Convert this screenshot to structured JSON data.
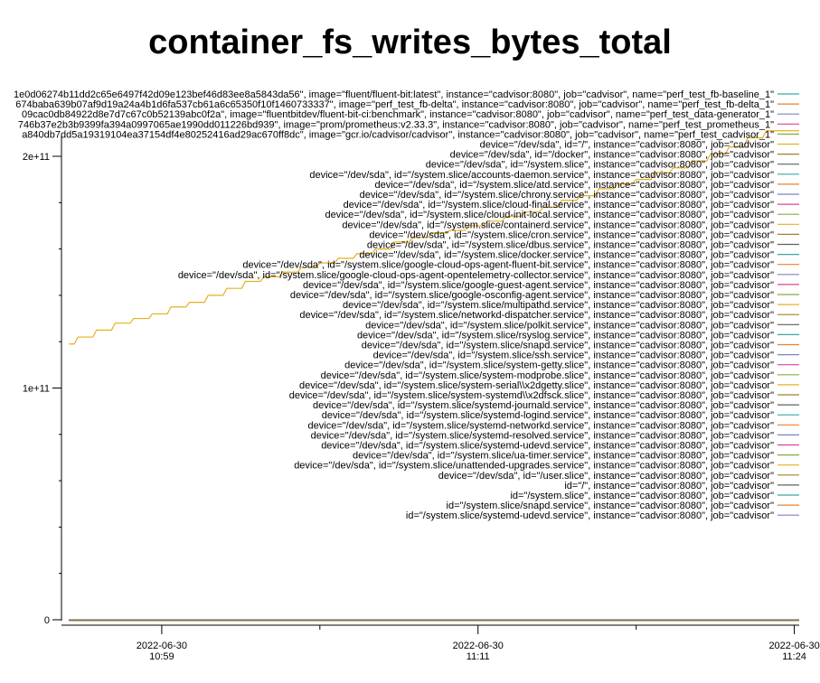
{
  "chart_data": {
    "type": "line",
    "title": "container_fs_writes_bytes_total",
    "xlabel": "",
    "ylabel": "",
    "ylim": [
      0,
      230000000000
    ],
    "y_ticks": [
      {
        "value": 0,
        "label": "0"
      },
      {
        "value": 100000000000,
        "label": "1e+11"
      },
      {
        "value": 200000000000,
        "label": "2e+11"
      }
    ],
    "x_range": [
      0,
      38
    ],
    "x_ticks": [
      {
        "value": 5,
        "label": [
          "2022-06-30",
          "10:59"
        ]
      },
      {
        "value": 22,
        "label": [
          "2022-06-30",
          "11:11"
        ]
      },
      {
        "value": 39,
        "label": [
          "2022-06-30",
          "11:24"
        ]
      }
    ],
    "x_minor_ticks": [
      13.5,
      30.5
    ],
    "grid": false,
    "legend_position": "top-right",
    "legend": [
      {
        "label": "1e0d06274b11dd2c65e6497f42d09e123bef46d83ee8a5843da56\", image=\"fluent/fluent-bit:latest\", instance=\"cadvisor:8080\", job=\"cadvisor\", name=\"perf_test_fb-baseline_1\"",
        "color": "#3aa6a6"
      },
      {
        "label": "674baba639b07af9d19a24a4b1d6fa537cb61a6c65350f10f1460733337\", image=\"perf_test_fb-delta\", instance=\"cadvisor:8080\", job=\"cadvisor\", name=\"perf_test_fb-delta_1\"",
        "color": "#ec7f2c"
      },
      {
        "label": "09cac0db84922d8e7d7c67c0b52139abc0f2a\", image=\"fluentbitdev/fluent-bit-ci:benchmark\", instance=\"cadvisor:8080\", job=\"cadvisor\", name=\"perf_test_data-generator_1\"",
        "color": "#8080c8"
      },
      {
        "label": "746b37e2b3b9399fa394a0997065ae1990dd011226bd939\", image=\"prom/prometheus:v2.33.3\", instance=\"cadvisor:8080\", job=\"cadvisor\", name=\"perf_test_prometheus_1\"",
        "color": "#e0409a"
      },
      {
        "label": "a840db7dd5a19319104ea37154df4e80252416ad29ac670ff8dc\", image=\"gcr.io/cadvisor/cadvisor\", instance=\"cadvisor:8080\", job=\"cadvisor\", name=\"perf_test_cadvisor_1\"",
        "color": "#80b040"
      },
      {
        "label": "device=\"/dev/sda\", id=\"/\", instance=\"cadvisor:8080\", job=\"cadvisor\"",
        "color": "#e8b020"
      },
      {
        "label": "device=\"/dev/sda\", id=\"/docker\", instance=\"cadvisor:8080\", job=\"cadvisor\"",
        "color": "#a08030"
      },
      {
        "label": "device=\"/dev/sda\", id=\"/system.slice\", instance=\"cadvisor:8080\", job=\"cadvisor\"",
        "color": "#606060"
      },
      {
        "label": "device=\"/dev/sda\", id=\"/system.slice/accounts-daemon.service\", instance=\"cadvisor:8080\", job=\"cadvisor\"",
        "color": "#3aa6a6"
      },
      {
        "label": "device=\"/dev/sda\", id=\"/system.slice/atd.service\", instance=\"cadvisor:8080\", job=\"cadvisor\"",
        "color": "#ec7f2c"
      },
      {
        "label": "device=\"/dev/sda\", id=\"/system.slice/chrony.service\", instance=\"cadvisor:8080\", job=\"cadvisor\"",
        "color": "#8080c8"
      },
      {
        "label": "device=\"/dev/sda\", id=\"/system.slice/cloud-final.service\", instance=\"cadvisor:8080\", job=\"cadvisor\"",
        "color": "#e0409a"
      },
      {
        "label": "device=\"/dev/sda\", id=\"/system.slice/cloud-init-local.service\", instance=\"cadvisor:8080\", job=\"cadvisor\"",
        "color": "#80b040"
      },
      {
        "label": "device=\"/dev/sda\", id=\"/system.slice/containerd.service\", instance=\"cadvisor:8080\", job=\"cadvisor\"",
        "color": "#e8b020"
      },
      {
        "label": "device=\"/dev/sda\", id=\"/system.slice/cron.service\", instance=\"cadvisor:8080\", job=\"cadvisor\"",
        "color": "#a08030"
      },
      {
        "label": "device=\"/dev/sda\", id=\"/system.slice/dbus.service\", instance=\"cadvisor:8080\", job=\"cadvisor\"",
        "color": "#606060"
      },
      {
        "label": "device=\"/dev/sda\", id=\"/system.slice/docker.service\", instance=\"cadvisor:8080\", job=\"cadvisor\"",
        "color": "#3aa6a6"
      },
      {
        "label": "device=\"/dev/sda\", id=\"/system.slice/google-cloud-ops-agent-fluent-bit.service\", instance=\"cadvisor:8080\", job=\"cadvisor\"",
        "color": "#ec7f2c"
      },
      {
        "label": "device=\"/dev/sda\", id=\"/system.slice/google-cloud-ops-agent-opentelemetry-collector.service\", instance=\"cadvisor:8080\", job=\"cadvisor\"",
        "color": "#8080c8"
      },
      {
        "label": "device=\"/dev/sda\", id=\"/system.slice/google-guest-agent.service\", instance=\"cadvisor:8080\", job=\"cadvisor\"",
        "color": "#e0409a"
      },
      {
        "label": "device=\"/dev/sda\", id=\"/system.slice/google-osconfig-agent.service\", instance=\"cadvisor:8080\", job=\"cadvisor\"",
        "color": "#80b040"
      },
      {
        "label": "device=\"/dev/sda\", id=\"/system.slice/multipathd.service\", instance=\"cadvisor:8080\", job=\"cadvisor\"",
        "color": "#e8b020"
      },
      {
        "label": "device=\"/dev/sda\", id=\"/system.slice/networkd-dispatcher.service\", instance=\"cadvisor:8080\", job=\"cadvisor\"",
        "color": "#a08030"
      },
      {
        "label": "device=\"/dev/sda\", id=\"/system.slice/polkit.service\", instance=\"cadvisor:8080\", job=\"cadvisor\"",
        "color": "#606060"
      },
      {
        "label": "device=\"/dev/sda\", id=\"/system.slice/rsyslog.service\", instance=\"cadvisor:8080\", job=\"cadvisor\"",
        "color": "#3aa6a6"
      },
      {
        "label": "device=\"/dev/sda\", id=\"/system.slice/snapd.service\", instance=\"cadvisor:8080\", job=\"cadvisor\"",
        "color": "#ec7f2c"
      },
      {
        "label": "device=\"/dev/sda\", id=\"/system.slice/ssh.service\", instance=\"cadvisor:8080\", job=\"cadvisor\"",
        "color": "#8080c8"
      },
      {
        "label": "device=\"/dev/sda\", id=\"/system.slice/system-getty.slice\", instance=\"cadvisor:8080\", job=\"cadvisor\"",
        "color": "#e0409a"
      },
      {
        "label": "device=\"/dev/sda\", id=\"/system.slice/system-modprobe.slice\", instance=\"cadvisor:8080\", job=\"cadvisor\"",
        "color": "#80b040"
      },
      {
        "label": "device=\"/dev/sda\", id=\"/system.slice/system-serial\\\\x2dgetty.slice\", instance=\"cadvisor:8080\", job=\"cadvisor\"",
        "color": "#e8b020"
      },
      {
        "label": "device=\"/dev/sda\", id=\"/system.slice/system-systemd\\\\x2dfsck.slice\", instance=\"cadvisor:8080\", job=\"cadvisor\"",
        "color": "#a08030"
      },
      {
        "label": "device=\"/dev/sda\", id=\"/system.slice/systemd-journald.service\", instance=\"cadvisor:8080\", job=\"cadvisor\"",
        "color": "#606060"
      },
      {
        "label": "device=\"/dev/sda\", id=\"/system.slice/systemd-logind.service\", instance=\"cadvisor:8080\", job=\"cadvisor\"",
        "color": "#3aa6a6"
      },
      {
        "label": "device=\"/dev/sda\", id=\"/system.slice/systemd-networkd.service\", instance=\"cadvisor:8080\", job=\"cadvisor\"",
        "color": "#ec7f2c"
      },
      {
        "label": "device=\"/dev/sda\", id=\"/system.slice/systemd-resolved.service\", instance=\"cadvisor:8080\", job=\"cadvisor\"",
        "color": "#8080c8"
      },
      {
        "label": "device=\"/dev/sda\", id=\"/system.slice/systemd-udevd.service\", instance=\"cadvisor:8080\", job=\"cadvisor\"",
        "color": "#e0409a"
      },
      {
        "label": "device=\"/dev/sda\", id=\"/system.slice/ua-timer.service\", instance=\"cadvisor:8080\", job=\"cadvisor\"",
        "color": "#80b040"
      },
      {
        "label": "device=\"/dev/sda\", id=\"/system.slice/unattended-upgrades.service\", instance=\"cadvisor:8080\", job=\"cadvisor\"",
        "color": "#e8b020"
      },
      {
        "label": "device=\"/dev/sda\", id=\"/user.slice\", instance=\"cadvisor:8080\", job=\"cadvisor\"",
        "color": "#a08030"
      },
      {
        "label": "id=\"/\", instance=\"cadvisor:8080\", job=\"cadvisor\"",
        "color": "#606060"
      },
      {
        "label": "id=\"/system.slice\", instance=\"cadvisor:8080\", job=\"cadvisor\"",
        "color": "#3aa6a6"
      },
      {
        "label": "id=\"/system.slice/snapd.service\", instance=\"cadvisor:8080\", job=\"cadvisor\"",
        "color": "#ec7f2c"
      },
      {
        "label": "id=\"/system.slice/systemd-udevd.service\", instance=\"cadvisor:8080\", job=\"cadvisor\"",
        "color": "#8080c8"
      }
    ],
    "highlight_series_color": "#e8b020",
    "series": [
      {
        "color": "#e8b020",
        "x": [
          0,
          1,
          2,
          3,
          4,
          5,
          6,
          7,
          8,
          9,
          10,
          11,
          12,
          13,
          14,
          15,
          16,
          17,
          18,
          19,
          20,
          21,
          22,
          23,
          24,
          25,
          26,
          27,
          28,
          29,
          30,
          31,
          32,
          33,
          34,
          35,
          36,
          37,
          38
        ],
        "values": [
          119000000000,
          122000000000,
          125000000000,
          128000000000,
          130000000000,
          132000000000,
          135000000000,
          137000000000,
          140000000000,
          143000000000,
          146000000000,
          148000000000,
          150000000000,
          152000000000,
          154000000000,
          156000000000,
          158000000000,
          160000000000,
          163000000000,
          165000000000,
          167000000000,
          168000000000,
          170000000000,
          172000000000,
          174000000000,
          176000000000,
          178000000000,
          181000000000,
          183000000000,
          186000000000,
          188000000000,
          190000000000,
          193000000000,
          195000000000,
          198000000000,
          201000000000,
          204000000000,
          208000000000,
          211000000000
        ]
      }
    ],
    "flat_series_colors": [
      "#3aa6a6",
      "#ec7f2c",
      "#8080c8",
      "#e0409a",
      "#80b040",
      "#a08030",
      "#606060"
    ],
    "flat_series_value": 0
  }
}
